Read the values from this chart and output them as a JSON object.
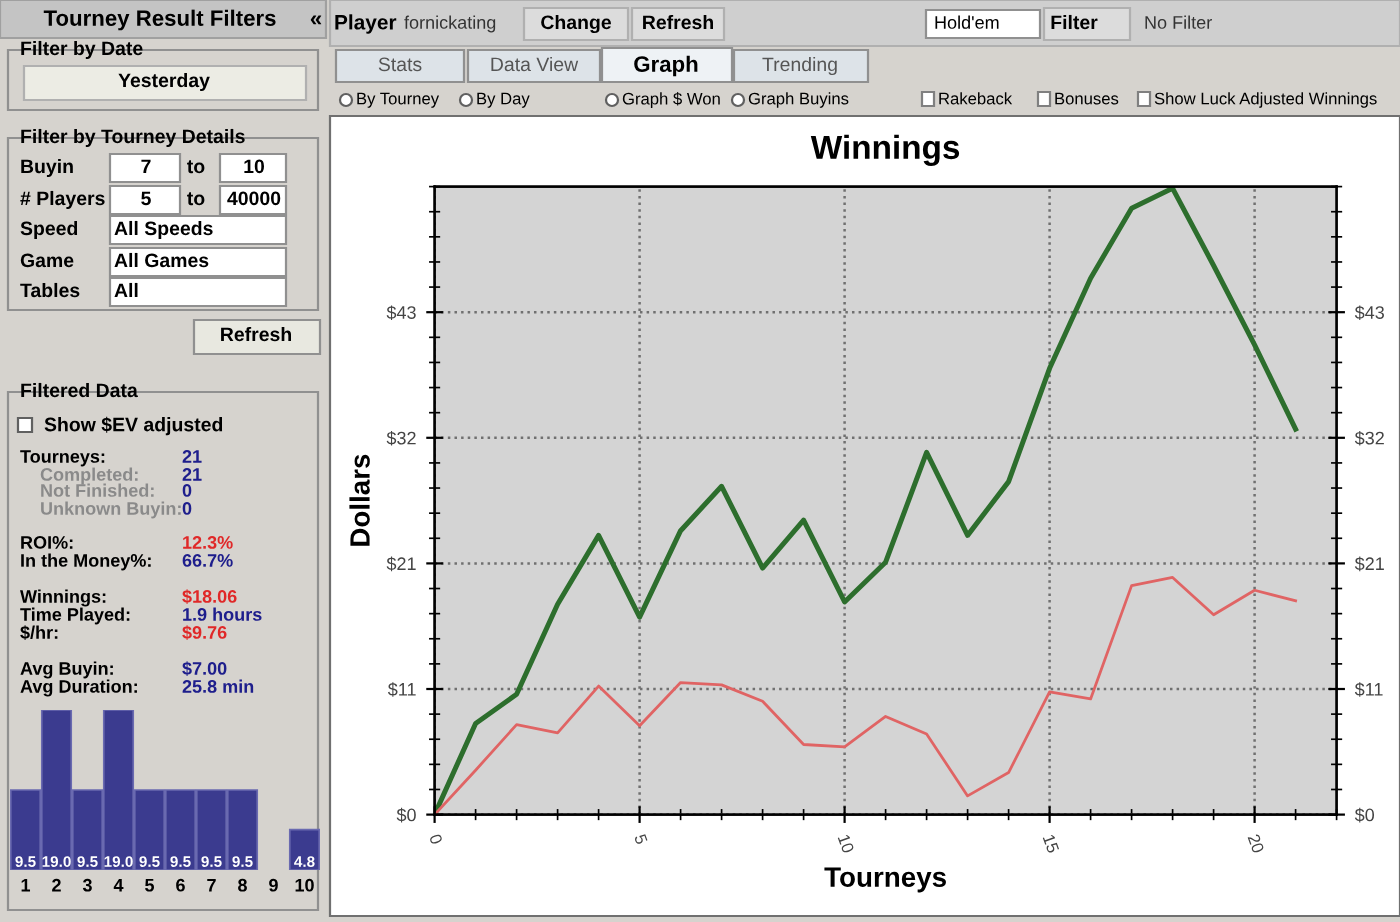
{
  "chart_data": [
    {
      "type": "other",
      "title": "Tourney Result Filters",
      "annotations": [
        "«",
        "Filter by Date",
        "Yesterday",
        "Filter by Tourney Details",
        "Buyin",
        "7",
        "to",
        "10",
        "# Players",
        "5",
        "to",
        "40000",
        "Speed",
        "All Speeds",
        "Game",
        "All Games",
        "Tables",
        "All",
        "Refresh",
        "Filtered Data",
        "Show $EV adjusted",
        "Tourneys:",
        "21",
        "Completed:",
        "21",
        "Not Finished:",
        "0",
        "Unknown Buyin:",
        "0",
        "ROI%:",
        "12.3%",
        "In the Money%:",
        "66.7%",
        "Winnings:",
        "$18.06",
        "Time Played:",
        "1.9 hours",
        "$/hr:",
        "$9.76",
        "Avg Buyin:",
        "$7.00",
        "Avg Duration:",
        "25.8 min",
        "Player",
        "fornickating",
        "Change",
        "Refresh",
        "Hold'em",
        "Filter",
        "No Filter",
        "Stats",
        "Data View",
        "Graph",
        "Trending",
        "By Tourney",
        "By Day",
        "Graph $ Won",
        "Graph Buyins",
        "Rakeback",
        "Bonuses",
        "Show Luck Adjusted Winnings"
      ]
    },
    {
      "type": "bar",
      "categories": [
        "1",
        "2",
        "3",
        "4",
        "5",
        "6",
        "7",
        "8",
        "9",
        "10"
      ],
      "values": [
        9.5,
        19.0,
        9.5,
        19.0,
        9.5,
        9.5,
        9.5,
        9.5,
        null,
        4.8
      ],
      "value_labels": [
        "9.5",
        "19.0",
        "9.5",
        "19.0",
        "9.5",
        "9.5",
        "9.5",
        "9.5",
        null,
        "4.8"
      ],
      "color": "#3b3b8f"
    },
    {
      "type": "line",
      "title": "Winnings",
      "xlabel": "Tourneys",
      "ylabel": "Dollars",
      "x": [
        0,
        1,
        2,
        3,
        4,
        5,
        6,
        7,
        8,
        9,
        10,
        11,
        12,
        13,
        14,
        15,
        16,
        17,
        18,
        19,
        20,
        21
      ],
      "series": [
        {
          "color": "#2d6e2d",
          "values": [
            0,
            7.8,
            10.3,
            18.0,
            23.9,
            16.9,
            24.3,
            28.1,
            21.1,
            25.2,
            18.2,
            21.6,
            31.0,
            23.9,
            28.5,
            38.2,
            45.9,
            51.9,
            53.6,
            47.0,
            40.2,
            33.0
          ]
        },
        {
          "color": "#e06464",
          "values": [
            0,
            3.8,
            7.7,
            7.0,
            11.0,
            7.6,
            11.3,
            11.1,
            9.7,
            6.0,
            5.8,
            8.4,
            6.9,
            1.6,
            3.6,
            10.5,
            9.9,
            19.6,
            20.3,
            17.1,
            19.2,
            18.3
          ]
        }
      ],
      "xlim": [
        0,
        22
      ],
      "xticks": [
        0,
        5,
        10,
        15,
        20
      ],
      "ylim": [
        0,
        53.75
      ],
      "yticks": [
        {
          "value": 0,
          "label": "$0"
        },
        {
          "value": 10.75,
          "label": "$11"
        },
        {
          "value": 21.5,
          "label": "$21"
        },
        {
          "value": 32.25,
          "label": "$32"
        },
        {
          "value": 43,
          "label": "$43"
        }
      ],
      "y2lim": [
        0,
        53.75
      ],
      "y2ticks": [
        {
          "value": 0,
          "label": "$0"
        },
        {
          "value": 10.75,
          "label": "$11"
        },
        {
          "value": 21.5,
          "label": "$21"
        },
        {
          "value": 32.25,
          "label": "$32"
        },
        {
          "value": 43,
          "label": "$43"
        }
      ],
      "grid": true
    }
  ]
}
